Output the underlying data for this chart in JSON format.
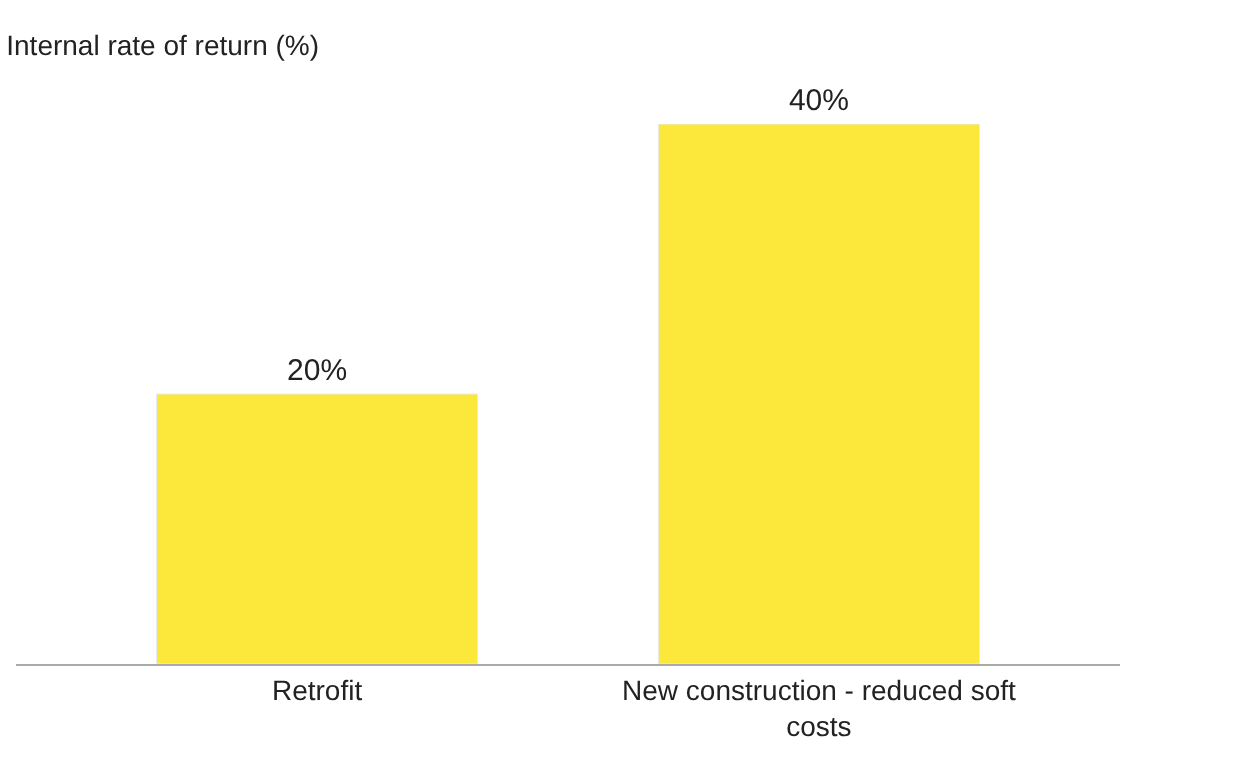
{
  "chart_data": {
    "type": "bar",
    "title": "Internal rate of return (%)",
    "categories": [
      "Retrofit",
      "New construction - reduced soft costs"
    ],
    "values": [
      20,
      40
    ],
    "value_labels": [
      "20%",
      "40%"
    ],
    "color": "#fbe83a"
  }
}
